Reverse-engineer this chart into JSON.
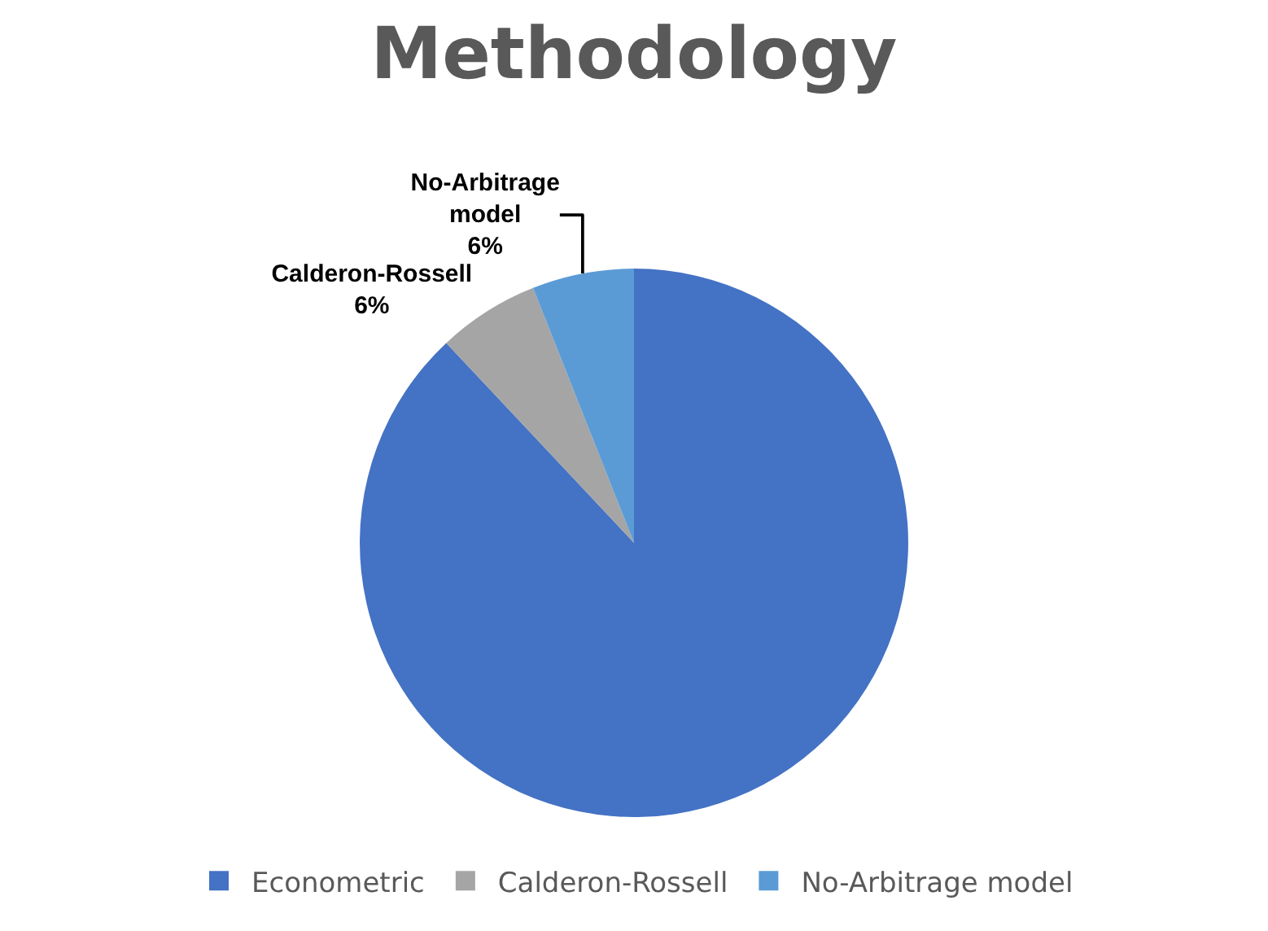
{
  "chart_data": {
    "type": "pie",
    "title": "Methodology",
    "categories": [
      "Econometric",
      "Calderon-Rossell",
      "No-Arbitrage model"
    ],
    "values": [
      88,
      6,
      6
    ],
    "colors": [
      "#4472c4",
      "#a5a5a5",
      "#5b9bd5"
    ],
    "value_labels": [
      null,
      "Calderon-Rossell 6%",
      "No-Arbitrage model 6%"
    ],
    "legend": "bottom"
  }
}
